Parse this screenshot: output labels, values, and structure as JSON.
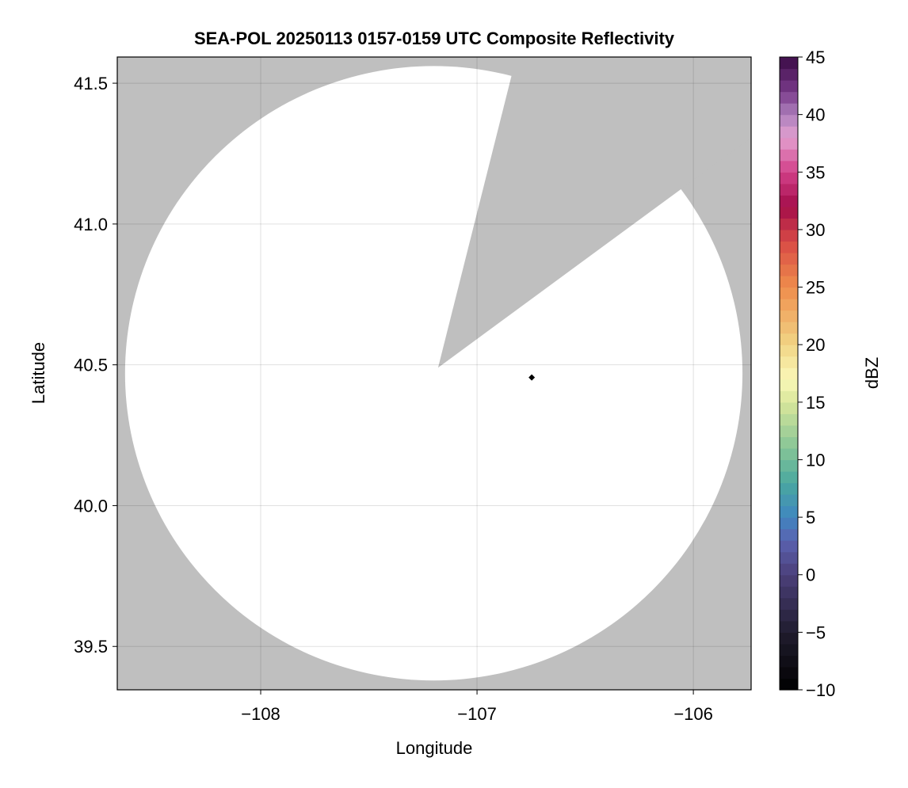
{
  "chart_data": {
    "type": "heatmap",
    "title": "SEA-POL 20250113 0157-0159 UTC Composite Reflectivity",
    "xlabel": "Longitude",
    "ylabel": "Latitude",
    "xlim": [
      -108.663,
      -105.733
    ],
    "ylim": [
      39.346,
      41.593
    ],
    "xticks": [
      -108,
      -107,
      -106
    ],
    "xtick_labels": [
      "−108",
      "−107",
      "−106"
    ],
    "yticks": [
      39.5,
      40.0,
      40.5,
      41.0,
      41.5
    ],
    "ytick_labels": [
      "39.5",
      "40.0",
      "40.5",
      "41.0",
      "41.5"
    ],
    "grid": true,
    "background_color": "#bfbfbf",
    "coverage_color": "#ffffff",
    "radar_center": {
      "lon": -107.2,
      "lat": 40.47
    },
    "coverage_radius_deg": {
      "lon": 1.427,
      "lat": 1.091
    },
    "blocked_sector": {
      "apex": {
        "lon": -107.18,
        "lat": 40.49
      },
      "edge1": {
        "lon": -106.842,
        "lat": 41.522
      },
      "edge2": {
        "lon": -106.062,
        "lat": 41.121
      }
    },
    "marker": {
      "lon": -106.747,
      "lat": 40.455,
      "shape": "diamond",
      "color": "#000000"
    },
    "colorbar": {
      "label": "dBZ",
      "range": [
        -10,
        45
      ],
      "step": 1,
      "ticks": [
        -10,
        -5,
        0,
        5,
        10,
        15,
        20,
        25,
        30,
        35,
        40,
        45
      ],
      "tick_labels": [
        "−10",
        "−5",
        "0",
        "5",
        "10",
        "15",
        "20",
        "25",
        "30",
        "35",
        "40",
        "45"
      ],
      "stops": [
        [
          -10,
          "#000000"
        ],
        [
          -5,
          "#201c2e"
        ],
        [
          0,
          "#4b3f7a"
        ],
        [
          3,
          "#5b62b0"
        ],
        [
          5,
          "#3f86c0"
        ],
        [
          8,
          "#4aa8a0"
        ],
        [
          11,
          "#86c596"
        ],
        [
          15,
          "#d8e69a"
        ],
        [
          17,
          "#fbf8b8"
        ],
        [
          20,
          "#f1d585"
        ],
        [
          25,
          "#ef8d4c"
        ],
        [
          29,
          "#d84a45"
        ],
        [
          32,
          "#a30d4a"
        ],
        [
          35,
          "#d23f88"
        ],
        [
          38,
          "#e3a0d0"
        ],
        [
          40,
          "#ae80bd"
        ],
        [
          42,
          "#7a3b8a"
        ],
        [
          45,
          "#3a0b45"
        ]
      ]
    }
  }
}
